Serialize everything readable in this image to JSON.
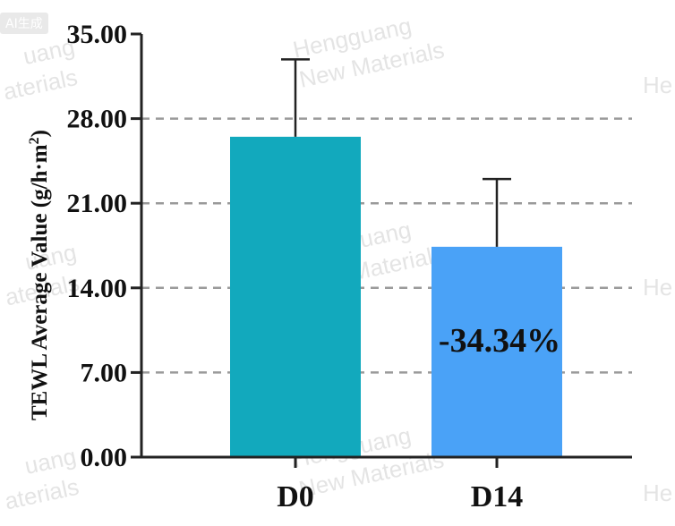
{
  "badge": "AI生成",
  "watermark": {
    "line1": "Hengguang",
    "line2": "New Materials",
    "partial_a": "uang",
    "partial_b": "aterials",
    "partial_c": "He"
  },
  "chart_data": {
    "type": "bar",
    "categories": [
      "D0",
      "D14"
    ],
    "values": [
      26.5,
      17.4
    ],
    "errors_upper": [
      6.4,
      5.6
    ],
    "colors": [
      "#12a9bd",
      "#4aa2f7"
    ],
    "ylabel": "TEWL Average Value (g/h·m²)",
    "ylabel_parts": {
      "main": "TEWL Average Value (g/h",
      "dot": "·",
      "m": "m",
      "sup": "2",
      "close": ")"
    },
    "yticks": [
      "0.00",
      "7.00",
      "14.00",
      "21.00",
      "28.00",
      "35.00"
    ],
    "ylim": [
      0,
      35
    ],
    "grid": true,
    "annotation": "-34.34%"
  }
}
